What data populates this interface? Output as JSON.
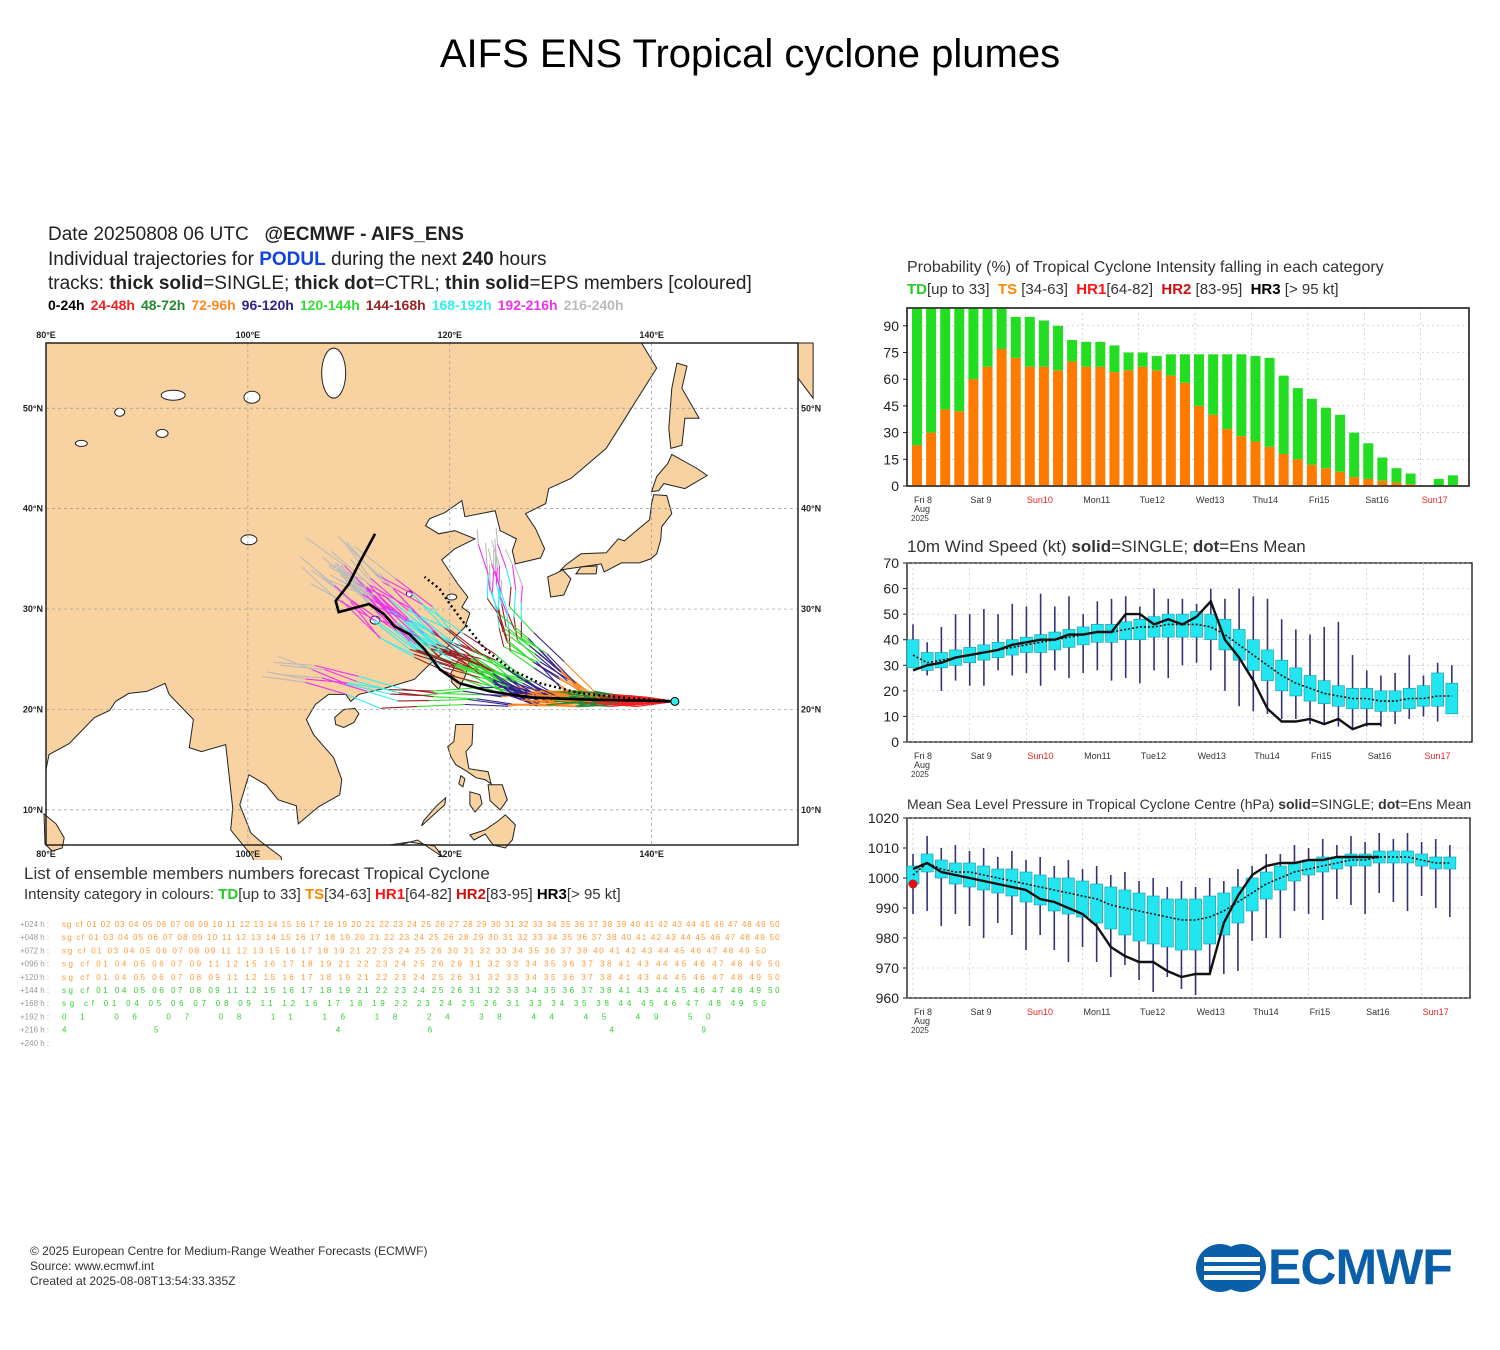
{
  "title": "AIFS ENS Tropical cyclone plumes",
  "header": {
    "date_line_left": "Date 20250808 06 UTC",
    "date_line_right": "@ECMWF - AIFS_ENS",
    "traj_prefix": "Individual trajectories for",
    "storm_name": "PODUL",
    "traj_mid": "during the next",
    "hours": "240",
    "hours_unit": "hours",
    "tracks_prefix": "tracks:",
    "tracks_single_b": "thick solid",
    "tracks_single": "=SINGLE;",
    "tracks_ctrl_b": "thick dot",
    "tracks_ctrl": "=CTRL;",
    "tracks_eps_b": "thin solid",
    "tracks_eps": "=EPS members [coloured]"
  },
  "time_legend": [
    {
      "label": "0-24h",
      "color": "#000000"
    },
    {
      "label": "24-48h",
      "color": "#ee2222"
    },
    {
      "label": "48-72h",
      "color": "#228833"
    },
    {
      "label": "72-96h",
      "color": "#ff8822"
    },
    {
      "label": "96-120h",
      "color": "#332288"
    },
    {
      "label": "120-144h",
      "color": "#33dd33"
    },
    {
      "label": "144-168h",
      "color": "#992222"
    },
    {
      "label": "168-192h",
      "color": "#33eeee"
    },
    {
      "label": "192-216h",
      "color": "#ee33ee"
    },
    {
      "label": "216-240h",
      "color": "#bbbbbb"
    }
  ],
  "map": {
    "lon_labels": [
      "80°E",
      "100°E",
      "120°E",
      "140°E"
    ],
    "lat_labels": [
      "50°N",
      "40°N",
      "30°N",
      "20°N",
      "10°N"
    ],
    "land_color": "#f8d2a0",
    "sea_color": "#ffffff"
  },
  "list": {
    "title": "List of ensemble members numbers forecast Tropical Cyclone",
    "sub_prefix": "Intensity category in colours:",
    "td": "TD",
    "td_range": "[up to 33]",
    "ts": "TS",
    "ts_range": "[34-63]",
    "hr1": "HR1",
    "hr1_range": "[64-82]",
    "hr2": "HR2",
    "hr2_range": "[83-95]",
    "hr3": "HR3",
    "hr3_range": "[> 95 kt]",
    "rows": [
      {
        "lead": "+024 h :",
        "text": "sg cf 01  02 03 04 05 06 07 08 09 10 11 12 13 14 15 16 17 18 19 20 21 22 23 24 25 26 27 28 29 30 31 32 33 34 35 36 37 38 39 40 41 42 43 44 45 46 47 48 49 50",
        "color": "#ff9933"
      },
      {
        "lead": "+048 h :",
        "text": "sg cf 01     03 04 05 06 07 08 09 10 11 12 13 14 15 16 17 18 19 20 21 22 23 24 25 26    28 29 30 31 32 33 34 35 36 37 38    40 41 42 43 44 45 46 47 48 49 50",
        "color": "#ff9933"
      },
      {
        "lead": "+072 h :",
        "text": "sg cf 01     03 04 05 06 07 08 09    11 12 13    15 16 17 18 19    21 22 23 24 25 26       30 31 32 33 34 35 36 37 38    40 41 42 43 44 45 46 47 48 49 50",
        "color": "#ff9933"
      },
      {
        "lead": "+096 h :",
        "text": "sg cf 01        04 05 06 07    09    11 12       15 16 17 18 19    21 22 23 24 25 26       29    31 32 33 34 35 36 37 38       41    43 44 45 46 47 48 49 50",
        "color": "#ff9933"
      },
      {
        "lead": "+120 h :",
        "text": "sg cf 01        04 05 06 07 08 09    11 12       15 16 17 18 19    21 22 23 24 25 26             31 32 33 34 35 36 37 38       41    43 44 45 46 47 48 49 50",
        "color": "#ff9933"
      },
      {
        "lead": "+144 h :",
        "text": "sg cf 01        04 05 06 07 08 09    11 12       15 16 17 18 19    21 22 23 24 25 26             31 32 33 34 35 36 37 38       41    43 44 45 46 47 48 49 50",
        "color": "#33cc33"
      },
      {
        "lead": "+168 h :",
        "text": "sg cf 01        04 05 06 07 08 09    11 12          16 17 18 19       22 23 24 25 26             31    33 34 35       38             44 45 46 47 48 49 50",
        "color": "#33cc33"
      },
      {
        "lead": "+192 h :",
        "text": "      01           06 07 08       11             16    18             24                                  38             44 45          49 50",
        "color": "#33cc33"
      },
      {
        "lead": "+216 h :",
        "text": "                                                                                                                           45 46          49",
        "color": "#33cc33"
      },
      {
        "lead": "+240 h :",
        "text": "",
        "color": "#33cc33"
      }
    ]
  },
  "prob_panel": {
    "title": "Probability (%) of Tropical Cyclone Intensity falling in each category",
    "legend": {
      "td": "TD",
      "td_range": "[up to 33]",
      "ts": "TS",
      "ts_range": "[34-63]",
      "hr1": "HR1",
      "hr1_range": "[64-82]",
      "hr2": "HR2",
      "hr2_range": "[83-95]",
      "hr3": "HR3",
      "hr3_range": "[> 95 kt]"
    }
  },
  "wind_panel": {
    "title_prefix": "10m Wind Speed (kt)",
    "solid_b": "solid",
    "solid": "=SINGLE;",
    "dot_b": "dot",
    "dot": "=Ens Mean"
  },
  "mslp_panel": {
    "title_prefix": "Mean Sea Level Pressure in Tropical Cyclone Centre (hPa)",
    "solid_b": "solid",
    "solid": "=SINGLE;",
    "dot_b": "dot",
    "dot": "=Ens Mean"
  },
  "day_labels": [
    "Fri 8",
    "Sat 9",
    "Sun10",
    "Mon11",
    "Tue12",
    "Wed13",
    "Thu14",
    "Fri15",
    "Sat16",
    "Sun17"
  ],
  "day_sub": [
    "Aug",
    "2025"
  ],
  "weekend_color": "#ee2222",
  "chart_data": [
    {
      "type": "bar",
      "title": "Probability (%) of Tropical Cyclone Intensity falling in each category",
      "ylabel": "",
      "ylim": [
        0,
        100
      ],
      "yticks": [
        0,
        15,
        30,
        45,
        60,
        75,
        90
      ],
      "x_step_hours": 6,
      "series": [
        {
          "name": "TS",
          "color": "#ff7b00",
          "values": [
            23,
            30,
            43,
            42,
            60,
            67,
            77,
            72,
            67,
            67,
            65,
            70,
            67,
            67,
            64,
            65,
            67,
            65,
            62,
            58,
            45,
            40,
            32,
            28,
            25,
            22,
            18,
            15,
            12,
            10,
            8,
            5,
            4,
            3,
            2,
            1,
            0,
            0,
            0
          ]
        },
        {
          "name": "TD",
          "color": "#22dd22",
          "values": [
            77,
            70,
            57,
            58,
            40,
            33,
            23,
            23,
            28,
            26,
            25,
            12,
            14,
            14,
            15,
            10,
            8,
            8,
            12,
            16,
            29,
            34,
            42,
            46,
            48,
            50,
            44,
            40,
            37,
            34,
            32,
            25,
            20,
            13,
            8,
            6,
            0,
            4,
            6
          ]
        }
      ]
    },
    {
      "type": "line",
      "title": "10m Wind Speed (kt)",
      "ylim": [
        0,
        70
      ],
      "yticks": [
        0,
        10,
        20,
        30,
        40,
        50,
        60,
        70
      ],
      "x_step_hours": 6,
      "series": [
        {
          "name": "SINGLE",
          "values": [
            28,
            30,
            31,
            33,
            34,
            35,
            36,
            38,
            39,
            40,
            40,
            42,
            42,
            43,
            43,
            50,
            50,
            46,
            48,
            46,
            49,
            55,
            40,
            33,
            24,
            13,
            8,
            8,
            9,
            7,
            9,
            5,
            7,
            7
          ]
        },
        {
          "name": "Ens Mean",
          "values": [
            34,
            31,
            32,
            33,
            34,
            35,
            36,
            37,
            38,
            39,
            40,
            41,
            42,
            43,
            43,
            44,
            45,
            45,
            46,
            46,
            46,
            45,
            42,
            38,
            34,
            30,
            26,
            23,
            21,
            19,
            18,
            17,
            17,
            16,
            16,
            17,
            17,
            18,
            18
          ]
        }
      ],
      "boxes": {
        "median": [
          34,
          31,
          32,
          33,
          34,
          35,
          36,
          37,
          38,
          39,
          40,
          41,
          42,
          43,
          43,
          44,
          45,
          45,
          46,
          46,
          46,
          45,
          42,
          38,
          34,
          30,
          26,
          23,
          21,
          19,
          18,
          17,
          17,
          16,
          16,
          17,
          17,
          18,
          18
        ],
        "q1": [
          29,
          28,
          29,
          30,
          31,
          32,
          33,
          34,
          35,
          35,
          36,
          37,
          38,
          39,
          39,
          40,
          40,
          41,
          41,
          41,
          41,
          40,
          36,
          32,
          28,
          24,
          20,
          18,
          16,
          15,
          14,
          13,
          13,
          12,
          12,
          13,
          14,
          14,
          11
        ],
        "q3": [
          40,
          35,
          35,
          36,
          37,
          38,
          39,
          40,
          41,
          42,
          43,
          44,
          45,
          46,
          46,
          47,
          48,
          49,
          50,
          50,
          51,
          50,
          48,
          44,
          40,
          36,
          32,
          29,
          26,
          24,
          22,
          21,
          21,
          20,
          20,
          21,
          22,
          27,
          23
        ],
        "min": [
          30,
          26,
          20,
          24,
          22,
          22,
          28,
          26,
          27,
          22,
          28,
          25,
          27,
          28,
          24,
          25,
          23,
          28,
          25,
          30,
          31,
          28,
          20,
          14,
          12,
          11,
          9,
          9,
          7,
          7,
          6,
          5,
          6,
          6,
          7,
          9,
          10,
          8,
          11
        ],
        "max": [
          46,
          39,
          45,
          50,
          50,
          52,
          50,
          54,
          53,
          58,
          53,
          57,
          50,
          55,
          56,
          57,
          53,
          60,
          56,
          56,
          54,
          60,
          56,
          60,
          57,
          56,
          48,
          44,
          42,
          45,
          47,
          34,
          28,
          26,
          27,
          34,
          26,
          31,
          30
        ]
      }
    },
    {
      "type": "line",
      "title": "Mean Sea Level Pressure in Tropical Cyclone Centre (hPa)",
      "ylim": [
        960,
        1020
      ],
      "yticks": [
        960,
        970,
        980,
        990,
        1000,
        1010,
        1020
      ],
      "x_step_hours": 6,
      "series": [
        {
          "name": "SINGLE",
          "values": [
            1003,
            1005,
            1002,
            1001,
            1000,
            999,
            998,
            997,
            996,
            993,
            992,
            990,
            988,
            984,
            977,
            974,
            972,
            972,
            969,
            967,
            968,
            968,
            985,
            994,
            1001,
            1004,
            1005,
            1005,
            1006,
            1006,
            1007,
            1007,
            1007,
            1007
          ]
        },
        {
          "name": "Ens Mean",
          "values": [
            1001,
            1005,
            1003,
            1002,
            1002,
            1001,
            1000,
            999,
            998,
            997,
            996,
            995,
            994,
            993,
            991,
            990,
            989,
            988,
            987,
            986,
            986,
            987,
            989,
            992,
            995,
            998,
            1000,
            1002,
            1003,
            1004,
            1005,
            1006,
            1006,
            1007,
            1007,
            1007,
            1006,
            1005,
            1005
          ]
        }
      ],
      "boxes": {
        "median": [
          1001,
          1005,
          1003,
          1002,
          1002,
          1001,
          1000,
          999,
          998,
          997,
          996,
          995,
          994,
          993,
          991,
          990,
          989,
          988,
          987,
          986,
          986,
          987,
          989,
          992,
          995,
          998,
          1000,
          1002,
          1003,
          1004,
          1005,
          1006,
          1006,
          1007,
          1007,
          1007,
          1006,
          1005,
          1005
        ],
        "q1": [
          998,
          1002,
          1000,
          998,
          997,
          996,
          995,
          994,
          992,
          991,
          989,
          988,
          987,
          985,
          983,
          981,
          979,
          978,
          977,
          976,
          976,
          978,
          981,
          985,
          989,
          993,
          996,
          999,
          1001,
          1002,
          1003,
          1004,
          1004,
          1005,
          1005,
          1005,
          1004,
          1003,
          1003
        ],
        "q3": [
          1004,
          1008,
          1006,
          1005,
          1005,
          1004,
          1003,
          1003,
          1002,
          1001,
          1000,
          1000,
          999,
          998,
          997,
          996,
          995,
          994,
          993,
          993,
          993,
          994,
          995,
          997,
          1000,
          1002,
          1004,
          1005,
          1006,
          1007,
          1007,
          1008,
          1008,
          1009,
          1009,
          1009,
          1008,
          1007,
          1007
        ]
      }
    }
  ],
  "footer": {
    "copyright": "© 2025 European Centre for Medium-Range Weather Forecasts (ECMWF)",
    "source": "Source: www.ecmwf.int",
    "created": "Created at 2025-08-08T13:54:33.335Z"
  },
  "logo_text": "ECMWF"
}
